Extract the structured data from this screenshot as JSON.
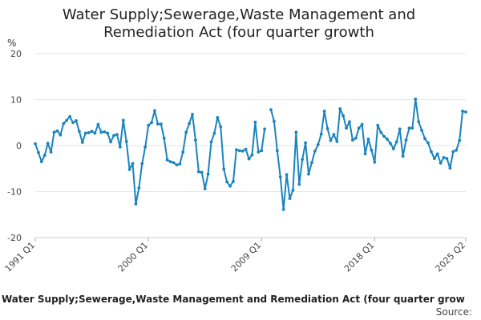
{
  "chart_data": {
    "type": "line",
    "title": [
      "Water Supply;Sewerage,Waste Management and",
      "Remediation Act (four quarter growth"
    ],
    "ylabel": "%",
    "ylim": [
      -20,
      20
    ],
    "yticks": [
      20,
      10,
      0,
      -10,
      -20
    ],
    "x_start": "1991 Q1",
    "x_end": "2025 Q2",
    "xtick_labels": [
      {
        "label": "1991 Q1",
        "index": 0
      },
      {
        "label": "2000 Q1",
        "index": 36
      },
      {
        "label": "2009 Q1",
        "index": 72
      },
      {
        "label": "2018 Q1",
        "index": 108
      },
      {
        "label": "2025 Q2",
        "index": 137
      }
    ],
    "series": [
      {
        "name": "Water Supply;Sewerage,Waste Management and Remediation Act (four quarter growth",
        "color": "#1a84be",
        "values": [
          0.4,
          -1.5,
          -3.5,
          -2.1,
          0.5,
          -1.4,
          2.9,
          3.2,
          2.3,
          4.8,
          5.5,
          6.3,
          5.0,
          5.4,
          3.1,
          0.7,
          2.7,
          2.8,
          3.1,
          2.7,
          4.6,
          2.9,
          3.0,
          2.7,
          0.8,
          2.2,
          2.4,
          -0.3,
          5.5,
          0.9,
          -5.2,
          -3.9,
          -12.7,
          -9.2,
          -3.9,
          -0.3,
          4.4,
          5.0,
          7.6,
          4.7,
          4.7,
          1.6,
          -3.1,
          -3.5,
          -3.7,
          -4.2,
          -4.0,
          -1.4,
          2.9,
          4.8,
          6.8,
          1.2,
          -5.7,
          -5.8,
          -9.4,
          -6.2,
          0.8,
          2.7,
          6.1,
          4.1,
          -5.1,
          -7.9,
          -8.8,
          -7.8,
          -0.9,
          -1.1,
          -1.2,
          -0.8,
          -2.9,
          -2.0,
          5.1,
          -1.4,
          -1.1,
          3.6,
          null,
          7.8,
          5.3,
          -1.1,
          -6.8,
          -13.9,
          -6.3,
          -11.5,
          -9.7,
          2.9,
          -8.4,
          -3.0,
          0.6,
          -6.2,
          -3.7,
          -1.2,
          0.2,
          2.5,
          7.5,
          3.7,
          1.1,
          2.4,
          0.9,
          8.0,
          6.5,
          3.8,
          5.2,
          1.2,
          1.6,
          3.8,
          4.6,
          -1.8,
          1.4,
          -1.0,
          -3.6,
          4.4,
          2.9,
          2.0,
          1.4,
          0.5,
          -0.7,
          0.8,
          3.6,
          -2.3,
          1.2,
          3.8,
          3.8,
          10.1,
          5.2,
          3.3,
          1.5,
          0.6,
          -1.3,
          -2.8,
          -1.8,
          -3.8,
          -2.6,
          -2.8,
          -4.9,
          -1.3,
          -1.0,
          1.1,
          7.5,
          7.3
        ]
      }
    ],
    "legend": "Water Supply;Sewerage,Waste Management and Remediation Act (four quarter grow",
    "source_label": "Source:"
  }
}
